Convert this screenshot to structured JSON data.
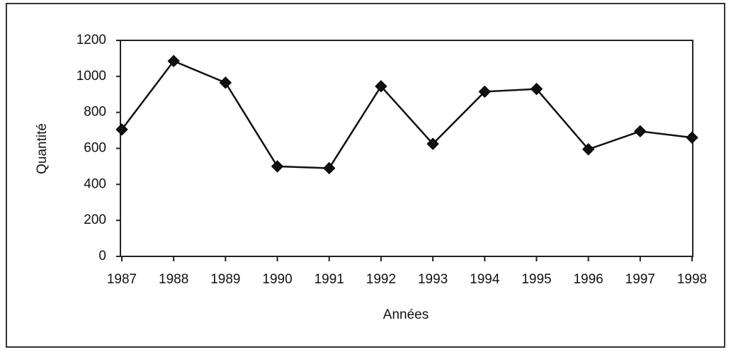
{
  "chart_data": {
    "type": "line",
    "categories": [
      "1987",
      "1988",
      "1989",
      "1990",
      "1991",
      "1992",
      "1993",
      "1994",
      "1995",
      "1996",
      "1997",
      "1998"
    ],
    "values": [
      705,
      1085,
      965,
      500,
      490,
      945,
      625,
      915,
      930,
      595,
      695,
      660
    ],
    "color": "#111111",
    "x_label": "Années",
    "y_label": "Quantité",
    "ylim": [
      0,
      1200
    ],
    "yticks": [
      0,
      200,
      400,
      600,
      800,
      1000,
      1200
    ],
    "grid": false
  }
}
